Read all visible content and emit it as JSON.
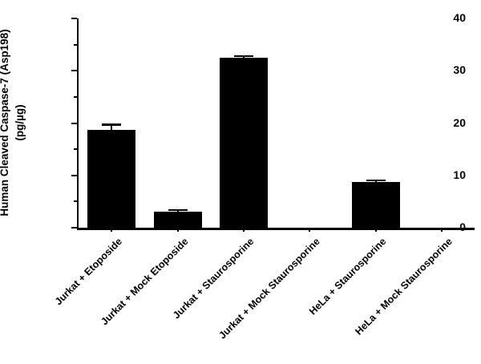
{
  "figure": {
    "background": "#ffffff",
    "bar_color": "#000000",
    "axis_color": "#000000"
  },
  "y_axis": {
    "title_line1": "Human Cleaved Caspase-7 (Asp198)",
    "title_line2": "(pg/µg)"
  },
  "chart_data": {
    "type": "bar",
    "title": "",
    "xlabel": "",
    "ylabel": "Human Cleaved Caspase-7 (Asp198) (pg/µg)",
    "categories": [
      "Jurkat + Etoposide",
      "Jurkat + Mock Etoposide",
      "Jurkat + Staurosporine",
      "Jurkat + Mock Staurosporine",
      "HeLa + Staurosporine",
      "HeLa + Mock Staurosporine"
    ],
    "values": [
      18.7,
      3.0,
      32.5,
      0,
      8.7,
      0
    ],
    "errors_plus": [
      1.0,
      0.4,
      0.3,
      0,
      0.4,
      0
    ],
    "ylim": [
      0,
      40
    ],
    "yticks_major": [
      0,
      10,
      20,
      30,
      40
    ],
    "yticks_minor": [
      5,
      15,
      25,
      35
    ],
    "grid": false,
    "legend": false,
    "bar_color": "#000000",
    "error_bar_direction": "up-only",
    "x_label_rotation_deg": -45
  }
}
